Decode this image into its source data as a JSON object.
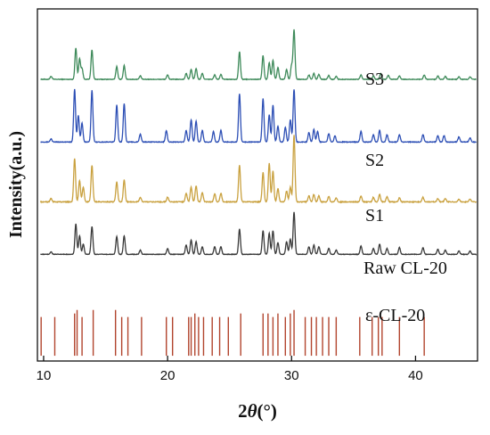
{
  "chart_data": {
    "type": "line",
    "xlabel_prefix": "2",
    "xlabel_theta": "θ",
    "xlabel_suffix": "(°)",
    "ylabel": "Intensity(a.u.)",
    "xlim": [
      9.5,
      45
    ],
    "x_ticks": [
      10,
      20,
      30,
      40
    ],
    "y_ticks": "none",
    "grid": false,
    "series": [
      {
        "name": "S3",
        "color": "#3e8a5a",
        "baseline": 0.8,
        "amp": 0.14,
        "peaks": [
          [
            10.6,
            0.06
          ],
          [
            12.6,
            0.64
          ],
          [
            12.9,
            0.42
          ],
          [
            13.1,
            0.22
          ],
          [
            13.9,
            0.6
          ],
          [
            15.9,
            0.26
          ],
          [
            16.5,
            0.28
          ],
          [
            17.8,
            0.07
          ],
          [
            20.0,
            0.09
          ],
          [
            21.5,
            0.12
          ],
          [
            21.9,
            0.2
          ],
          [
            22.3,
            0.22
          ],
          [
            22.8,
            0.12
          ],
          [
            23.8,
            0.09
          ],
          [
            24.3,
            0.1
          ],
          [
            25.8,
            0.56
          ],
          [
            27.7,
            0.48
          ],
          [
            28.2,
            0.34
          ],
          [
            28.5,
            0.38
          ],
          [
            28.9,
            0.24
          ],
          [
            29.6,
            0.2
          ],
          [
            30.0,
            0.28
          ],
          [
            30.2,
            1.0
          ],
          [
            31.4,
            0.09
          ],
          [
            31.8,
            0.12
          ],
          [
            32.2,
            0.1
          ],
          [
            33.0,
            0.08
          ],
          [
            33.6,
            0.06
          ],
          [
            35.6,
            0.09
          ],
          [
            36.6,
            0.07
          ],
          [
            37.2,
            0.12
          ],
          [
            37.8,
            0.08
          ],
          [
            38.7,
            0.07
          ],
          [
            40.7,
            0.09
          ],
          [
            41.8,
            0.07
          ],
          [
            42.4,
            0.06
          ],
          [
            43.5,
            0.05
          ],
          [
            44.4,
            0.05
          ]
        ]
      },
      {
        "name": "S2",
        "color": "#2d4fb5",
        "baseline": 0.622,
        "amp": 0.15,
        "peaks": [
          [
            10.6,
            0.06
          ],
          [
            12.5,
            1.0
          ],
          [
            12.8,
            0.5
          ],
          [
            13.1,
            0.36
          ],
          [
            13.9,
            0.98
          ],
          [
            15.9,
            0.7
          ],
          [
            16.5,
            0.73
          ],
          [
            17.8,
            0.15
          ],
          [
            19.9,
            0.22
          ],
          [
            21.5,
            0.22
          ],
          [
            21.9,
            0.42
          ],
          [
            22.3,
            0.4
          ],
          [
            22.8,
            0.22
          ],
          [
            23.7,
            0.2
          ],
          [
            24.3,
            0.22
          ],
          [
            25.8,
            0.92
          ],
          [
            27.7,
            0.82
          ],
          [
            28.2,
            0.52
          ],
          [
            28.5,
            0.7
          ],
          [
            28.9,
            0.3
          ],
          [
            29.5,
            0.28
          ],
          [
            29.9,
            0.42
          ],
          [
            30.2,
            1.0
          ],
          [
            31.4,
            0.18
          ],
          [
            31.8,
            0.24
          ],
          [
            32.1,
            0.2
          ],
          [
            33.0,
            0.16
          ],
          [
            33.5,
            0.12
          ],
          [
            35.6,
            0.2
          ],
          [
            36.6,
            0.14
          ],
          [
            37.1,
            0.22
          ],
          [
            37.7,
            0.14
          ],
          [
            38.7,
            0.14
          ],
          [
            40.6,
            0.14
          ],
          [
            41.8,
            0.12
          ],
          [
            42.3,
            0.12
          ],
          [
            43.5,
            0.1
          ],
          [
            44.4,
            0.08
          ]
        ]
      },
      {
        "name": "S1",
        "color": "#c9a13f",
        "baseline": 0.452,
        "amp": 0.19,
        "peaks": [
          [
            10.6,
            0.05
          ],
          [
            12.5,
            0.65
          ],
          [
            12.9,
            0.32
          ],
          [
            13.2,
            0.22
          ],
          [
            13.9,
            0.55
          ],
          [
            15.9,
            0.3
          ],
          [
            16.5,
            0.33
          ],
          [
            17.8,
            0.07
          ],
          [
            20.0,
            0.07
          ],
          [
            21.5,
            0.13
          ],
          [
            21.9,
            0.22
          ],
          [
            22.3,
            0.24
          ],
          [
            22.8,
            0.14
          ],
          [
            23.8,
            0.12
          ],
          [
            24.3,
            0.13
          ],
          [
            25.8,
            0.55
          ],
          [
            27.7,
            0.44
          ],
          [
            28.2,
            0.58
          ],
          [
            28.5,
            0.46
          ],
          [
            28.9,
            0.2
          ],
          [
            29.6,
            0.16
          ],
          [
            29.9,
            0.22
          ],
          [
            30.2,
            1.0
          ],
          [
            31.4,
            0.09
          ],
          [
            31.8,
            0.11
          ],
          [
            32.2,
            0.09
          ],
          [
            33.0,
            0.08
          ],
          [
            33.6,
            0.06
          ],
          [
            35.6,
            0.09
          ],
          [
            36.6,
            0.07
          ],
          [
            37.1,
            0.11
          ],
          [
            37.7,
            0.08
          ],
          [
            38.7,
            0.06
          ],
          [
            40.6,
            0.07
          ],
          [
            41.8,
            0.05
          ],
          [
            42.4,
            0.05
          ],
          [
            43.5,
            0.04
          ],
          [
            44.4,
            0.04
          ]
        ]
      },
      {
        "name": "Raw CL-20",
        "color": "#3a3a3a",
        "baseline": 0.303,
        "amp": 0.12,
        "peaks": [
          [
            10.6,
            0.06
          ],
          [
            12.6,
            0.72
          ],
          [
            12.9,
            0.44
          ],
          [
            13.2,
            0.24
          ],
          [
            13.9,
            0.66
          ],
          [
            15.9,
            0.42
          ],
          [
            16.5,
            0.44
          ],
          [
            17.8,
            0.1
          ],
          [
            20.0,
            0.14
          ],
          [
            21.5,
            0.22
          ],
          [
            21.9,
            0.34
          ],
          [
            22.3,
            0.3
          ],
          [
            22.8,
            0.18
          ],
          [
            23.8,
            0.18
          ],
          [
            24.3,
            0.18
          ],
          [
            25.8,
            0.6
          ],
          [
            27.7,
            0.56
          ],
          [
            28.2,
            0.5
          ],
          [
            28.5,
            0.56
          ],
          [
            28.9,
            0.28
          ],
          [
            29.6,
            0.3
          ],
          [
            29.9,
            0.36
          ],
          [
            30.2,
            1.0
          ],
          [
            31.4,
            0.18
          ],
          [
            31.8,
            0.22
          ],
          [
            32.2,
            0.18
          ],
          [
            33.0,
            0.14
          ],
          [
            33.6,
            0.1
          ],
          [
            35.6,
            0.2
          ],
          [
            36.6,
            0.14
          ],
          [
            37.1,
            0.24
          ],
          [
            37.7,
            0.14
          ],
          [
            38.7,
            0.16
          ],
          [
            40.6,
            0.16
          ],
          [
            41.8,
            0.12
          ],
          [
            42.4,
            0.1
          ],
          [
            43.5,
            0.08
          ],
          [
            44.4,
            0.08
          ]
        ]
      }
    ],
    "reference": {
      "name": "ε-CL-20",
      "color": "#b2452e",
      "baseline": 0.015,
      "lines": [
        [
          9.8,
          0.11
        ],
        [
          10.9,
          0.11
        ],
        [
          12.5,
          0.12
        ],
        [
          12.7,
          0.13
        ],
        [
          13.1,
          0.11
        ],
        [
          14.0,
          0.13
        ],
        [
          15.8,
          0.13
        ],
        [
          16.3,
          0.11
        ],
        [
          16.8,
          0.11
        ],
        [
          17.9,
          0.11
        ],
        [
          19.9,
          0.11
        ],
        [
          20.4,
          0.11
        ],
        [
          21.7,
          0.11
        ],
        [
          21.9,
          0.11
        ],
        [
          22.2,
          0.12
        ],
        [
          22.5,
          0.11
        ],
        [
          22.9,
          0.11
        ],
        [
          23.6,
          0.11
        ],
        [
          24.2,
          0.11
        ],
        [
          24.9,
          0.11
        ],
        [
          25.9,
          0.12
        ],
        [
          27.7,
          0.12
        ],
        [
          28.1,
          0.12
        ],
        [
          28.5,
          0.11
        ],
        [
          28.9,
          0.12
        ],
        [
          29.5,
          0.11
        ],
        [
          29.9,
          0.12
        ],
        [
          30.2,
          0.13
        ],
        [
          31.1,
          0.11
        ],
        [
          31.6,
          0.11
        ],
        [
          32.0,
          0.11
        ],
        [
          32.5,
          0.11
        ],
        [
          33.0,
          0.11
        ],
        [
          33.6,
          0.11
        ],
        [
          35.5,
          0.11
        ],
        [
          36.5,
          0.11
        ],
        [
          37.0,
          0.11
        ],
        [
          37.3,
          0.11
        ],
        [
          38.7,
          0.11
        ],
        [
          40.7,
          0.11
        ]
      ]
    }
  }
}
